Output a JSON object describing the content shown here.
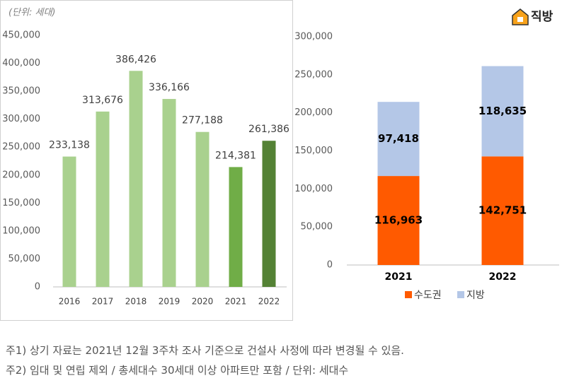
{
  "brand": "직방",
  "chart_data": [
    {
      "type": "bar",
      "subtitle": "(단위: 세대)",
      "categories": [
        "2016",
        "2017",
        "2018",
        "2019",
        "2020",
        "2021",
        "2022"
      ],
      "values": [
        233138,
        313676,
        386426,
        336166,
        277188,
        214381,
        261386
      ],
      "value_labels": [
        "233,138",
        "313,676",
        "386,426",
        "336,166",
        "277,188",
        "214,381",
        "261,386"
      ],
      "colors": [
        "#a9d18e",
        "#a9d18e",
        "#a9d18e",
        "#a9d18e",
        "#a9d18e",
        "#70ad47",
        "#548235"
      ],
      "ylim": [
        0,
        450000
      ],
      "yticks": [
        0,
        {
          "value": 50000,
          "label": "50,000"
        },
        {
          "value": 100000,
          "label": "100,000"
        },
        {
          "value": 150000,
          "label": "150,000"
        },
        {
          "value": 200000,
          "label": "200,000"
        },
        {
          "value": 250000,
          "label": "250,000"
        },
        {
          "value": 300000,
          "label": "300,000"
        },
        {
          "value": 350000,
          "label": "350,000"
        },
        {
          "value": 400000,
          "label": "400,000"
        },
        {
          "value": 450000,
          "label": "450,000"
        }
      ]
    },
    {
      "type": "stacked_bar",
      "categories": [
        "2021",
        "2022"
      ],
      "series": [
        {
          "name": "수도권",
          "color": "#ff5a00",
          "values": [
            116963,
            142751
          ],
          "value_labels": [
            "116,963",
            "142,751"
          ]
        },
        {
          "name": "지방",
          "color": "#b4c7e7",
          "values": [
            97418,
            118635
          ],
          "value_labels": [
            "97,418",
            "118,635"
          ]
        }
      ],
      "ylim": [
        0,
        300000
      ],
      "yticks": [
        0,
        {
          "value": 50000,
          "label": "50,000"
        },
        {
          "value": 100000,
          "label": "100,000"
        },
        {
          "value": 150000,
          "label": "150,000"
        },
        {
          "value": 200000,
          "label": "200,000"
        },
        {
          "value": 250000,
          "label": "250,000"
        },
        {
          "value": 300000,
          "label": "300,000"
        }
      ],
      "legend": "bottom"
    }
  ],
  "notes": [
    "주1) 상기 자료는 2021년 12월 3주차 조사 기준으로 건설사 사정에 따라 변경될 수 있음.",
    "주2) 임대 및 연립 제외 / 총세대수 30세대 이상 아파트만 포함 / 단위: 세대수"
  ]
}
